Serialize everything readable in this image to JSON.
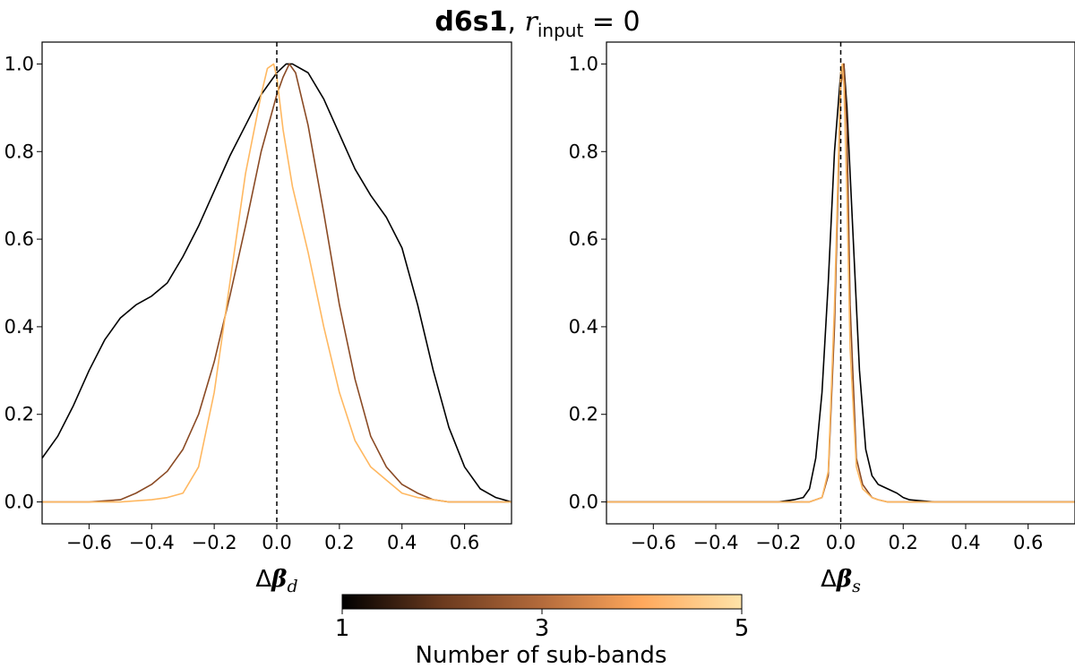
{
  "figure": {
    "title_bold": "d6s1",
    "title_sep": ", ",
    "title_var": "r",
    "title_sub": "input",
    "title_eq": " = 0"
  },
  "colorbar": {
    "label": "Number of sub-bands",
    "ticks": [
      "1",
      "3",
      "5"
    ],
    "colors": [
      "#000000",
      "#6b3a1e",
      "#b46b3c",
      "#ffa85c",
      "#ffe3a8"
    ]
  },
  "chart_data": [
    {
      "type": "line",
      "xlabel_delta": "Δ",
      "xlabel_beta": "β",
      "xlabel_sub": "d",
      "xlim": [
        -0.75,
        0.75
      ],
      "ylim": [
        -0.05,
        1.05
      ],
      "xticks": [
        -0.6,
        -0.4,
        -0.2,
        0.0,
        0.2,
        0.4,
        0.6
      ],
      "xtick_labels": [
        "−0.6",
        "−0.4",
        "−0.2",
        "0.0",
        "0.2",
        "0.4",
        "0.6"
      ],
      "yticks": [
        0.0,
        0.2,
        0.4,
        0.6,
        0.8,
        1.0
      ],
      "ytick_labels": [
        "0.0",
        "0.2",
        "0.4",
        "0.6",
        "0.8",
        "1.0"
      ],
      "vline_x": 0.0,
      "series": [
        {
          "color": "#000000",
          "x": [
            -0.75,
            -0.7,
            -0.65,
            -0.6,
            -0.55,
            -0.5,
            -0.45,
            -0.4,
            -0.35,
            -0.3,
            -0.25,
            -0.2,
            -0.15,
            -0.1,
            -0.05,
            0.0,
            0.03,
            0.05,
            0.1,
            0.15,
            0.2,
            0.25,
            0.3,
            0.35,
            0.4,
            0.45,
            0.5,
            0.55,
            0.6,
            0.65,
            0.7,
            0.75
          ],
          "y": [
            0.1,
            0.15,
            0.22,
            0.3,
            0.37,
            0.42,
            0.45,
            0.47,
            0.5,
            0.56,
            0.63,
            0.71,
            0.79,
            0.86,
            0.93,
            0.98,
            1.0,
            1.0,
            0.98,
            0.92,
            0.84,
            0.76,
            0.7,
            0.65,
            0.58,
            0.45,
            0.3,
            0.17,
            0.08,
            0.03,
            0.01,
            0.0
          ]
        },
        {
          "color": "#8a4a24",
          "x": [
            -0.75,
            -0.6,
            -0.5,
            -0.45,
            -0.4,
            -0.35,
            -0.3,
            -0.25,
            -0.2,
            -0.15,
            -0.1,
            -0.05,
            0.0,
            0.02,
            0.04,
            0.06,
            0.1,
            0.15,
            0.2,
            0.25,
            0.3,
            0.35,
            0.4,
            0.45,
            0.5,
            0.55,
            0.6,
            0.75
          ],
          "y": [
            0.0,
            0.0,
            0.005,
            0.02,
            0.04,
            0.07,
            0.12,
            0.2,
            0.32,
            0.47,
            0.63,
            0.8,
            0.93,
            0.97,
            1.0,
            0.98,
            0.86,
            0.66,
            0.45,
            0.28,
            0.15,
            0.08,
            0.04,
            0.02,
            0.005,
            0.0,
            0.0,
            0.0
          ]
        },
        {
          "color": "#ffb861",
          "x": [
            -0.75,
            -0.5,
            -0.4,
            -0.35,
            -0.3,
            -0.25,
            -0.2,
            -0.15,
            -0.1,
            -0.05,
            -0.03,
            -0.01,
            0.0,
            0.02,
            0.05,
            0.1,
            0.15,
            0.2,
            0.25,
            0.3,
            0.35,
            0.4,
            0.45,
            0.5,
            0.55,
            0.6,
            0.75
          ],
          "y": [
            0.0,
            0.0,
            0.005,
            0.01,
            0.02,
            0.08,
            0.25,
            0.5,
            0.75,
            0.93,
            0.99,
            1.0,
            0.97,
            0.85,
            0.72,
            0.57,
            0.4,
            0.25,
            0.14,
            0.08,
            0.05,
            0.02,
            0.01,
            0.005,
            0.0,
            0.0,
            0.0
          ]
        }
      ]
    },
    {
      "type": "line",
      "xlabel_delta": "Δ",
      "xlabel_beta": "β",
      "xlabel_sub": "s",
      "xlim": [
        -0.75,
        0.75
      ],
      "ylim": [
        -0.05,
        1.05
      ],
      "xticks": [
        -0.6,
        -0.4,
        -0.2,
        0.0,
        0.2,
        0.4,
        0.6
      ],
      "xtick_labels": [
        "−0.6",
        "−0.4",
        "−0.2",
        "0.0",
        "0.2",
        "0.4",
        "0.6"
      ],
      "yticks": [
        0.0,
        0.2,
        0.4,
        0.6,
        0.8,
        1.0
      ],
      "ytick_labels": [
        "0.0",
        "0.2",
        "0.4",
        "0.6",
        "0.8",
        "1.0"
      ],
      "vline_x": 0.0,
      "series": [
        {
          "color": "#000000",
          "x": [
            -0.75,
            -0.2,
            -0.15,
            -0.12,
            -0.1,
            -0.08,
            -0.06,
            -0.04,
            -0.02,
            0.0,
            0.01,
            0.02,
            0.04,
            0.06,
            0.08,
            0.1,
            0.12,
            0.15,
            0.18,
            0.2,
            0.22,
            0.25,
            0.3,
            0.75
          ],
          "y": [
            0.0,
            0.0,
            0.005,
            0.01,
            0.03,
            0.1,
            0.25,
            0.5,
            0.8,
            0.98,
            1.0,
            0.9,
            0.6,
            0.3,
            0.12,
            0.06,
            0.04,
            0.03,
            0.02,
            0.01,
            0.005,
            0.003,
            0.0,
            0.0
          ]
        },
        {
          "color": "#8a4a24",
          "x": [
            -0.75,
            -0.1,
            -0.06,
            -0.04,
            -0.02,
            0.0,
            0.01,
            0.02,
            0.03,
            0.05,
            0.07,
            0.1,
            0.12,
            0.15,
            0.75
          ],
          "y": [
            0.0,
            0.0,
            0.01,
            0.06,
            0.4,
            0.95,
            1.0,
            0.85,
            0.45,
            0.1,
            0.04,
            0.01,
            0.005,
            0.0,
            0.0
          ]
        },
        {
          "color": "#ffb861",
          "x": [
            -0.75,
            -0.1,
            -0.06,
            -0.04,
            -0.02,
            0.0,
            0.005,
            0.01,
            0.02,
            0.03,
            0.05,
            0.07,
            0.1,
            0.12,
            0.15,
            0.75
          ],
          "y": [
            0.0,
            0.0,
            0.01,
            0.07,
            0.45,
            0.98,
            1.0,
            0.95,
            0.7,
            0.35,
            0.08,
            0.03,
            0.01,
            0.005,
            0.0,
            0.0
          ]
        }
      ]
    }
  ]
}
